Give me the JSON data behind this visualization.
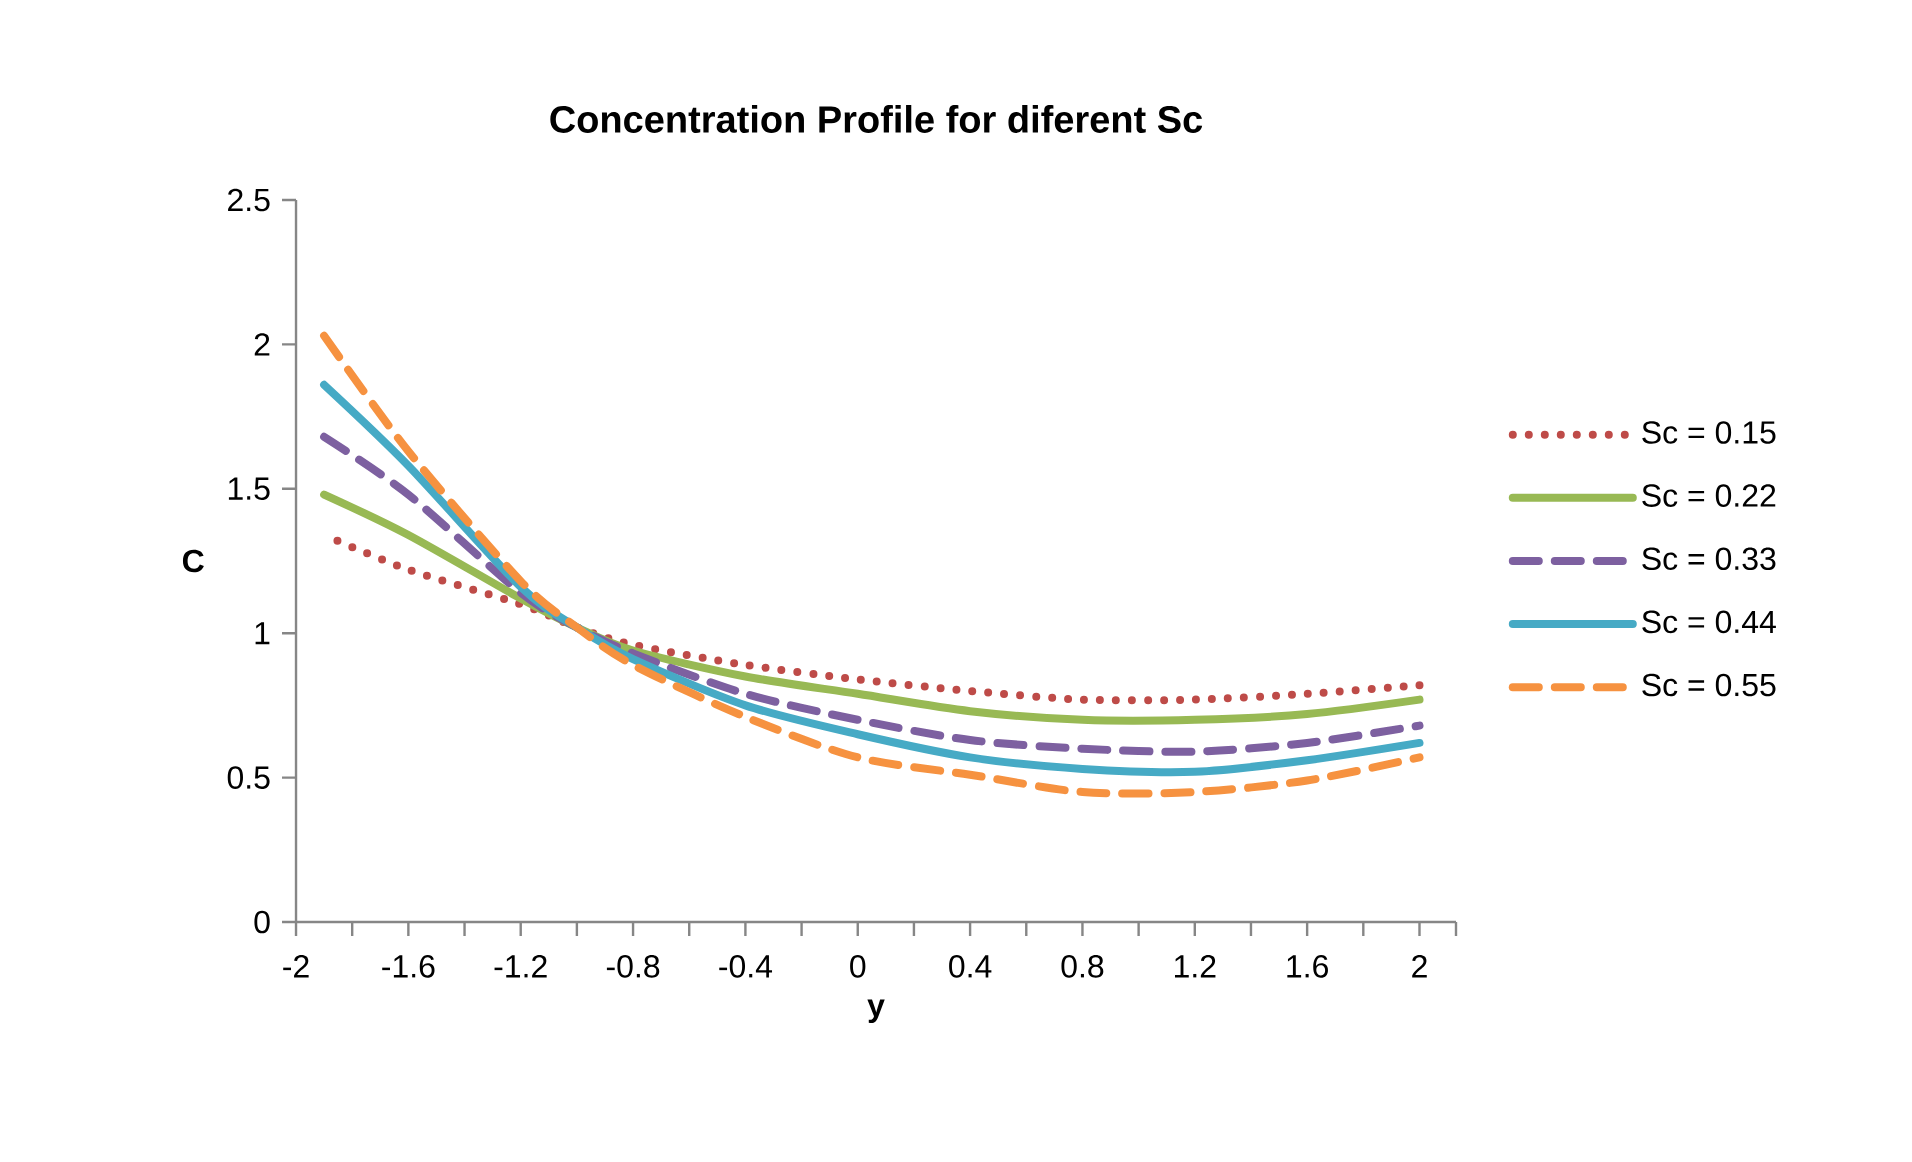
{
  "chart_data": {
    "type": "line",
    "title": "Concentration Profile for diferent Sc",
    "xlabel": "y",
    "ylabel": "C",
    "x": [
      -1.9,
      -1.6,
      -1.2,
      -1.0,
      -0.8,
      -0.4,
      0,
      0.4,
      0.8,
      1.2,
      1.6,
      2.0
    ],
    "series": [
      {
        "name": "Sc = 0.15",
        "color": "#be4b48",
        "line_style": "dotted",
        "values": [
          1.34,
          1.22,
          1.1,
          1.02,
          0.96,
          0.89,
          0.84,
          0.8,
          0.77,
          0.77,
          0.79,
          0.82
        ]
      },
      {
        "name": "Sc = 0.22",
        "color": "#98b954",
        "line_style": "solid",
        "values": [
          1.48,
          1.34,
          1.12,
          1.02,
          0.94,
          0.85,
          0.79,
          0.73,
          0.7,
          0.7,
          0.72,
          0.77
        ]
      },
      {
        "name": "Sc = 0.33",
        "color": "#7d60a0",
        "line_style": "dashed",
        "values": [
          1.68,
          1.48,
          1.14,
          1.02,
          0.93,
          0.79,
          0.7,
          0.63,
          0.6,
          0.59,
          0.62,
          0.68
        ]
      },
      {
        "name": "Sc = 0.44",
        "color": "#46aac5",
        "line_style": "solid",
        "values": [
          1.86,
          1.58,
          1.16,
          1.02,
          0.91,
          0.75,
          0.65,
          0.57,
          0.53,
          0.52,
          0.56,
          0.62
        ]
      },
      {
        "name": "Sc = 0.55",
        "color": "#f69240",
        "line_style": "dashed",
        "values": [
          2.03,
          1.63,
          1.18,
          1.02,
          0.89,
          0.71,
          0.57,
          0.51,
          0.45,
          0.45,
          0.49,
          0.57
        ]
      }
    ],
    "xlim": [
      -2,
      2.13
    ],
    "ylim": [
      0,
      2.5
    ],
    "xticks": [
      -2,
      {
        "value": -1.8,
        "label": null
      },
      -1.6,
      {
        "value": -1.4,
        "label": null
      },
      -1.2,
      {
        "value": -1.0,
        "label": null
      },
      -0.8,
      {
        "value": -0.6,
        "label": null
      },
      -0.4,
      {
        "value": -0.2,
        "label": null
      },
      0,
      {
        "value": 0.2,
        "label": null
      },
      0.4,
      {
        "value": 0.6,
        "label": null
      },
      0.8,
      {
        "value": 1.0,
        "label": null
      },
      1.2,
      {
        "value": 1.4,
        "label": null
      },
      1.6,
      {
        "value": 1.8,
        "label": null
      },
      2,
      {
        "value": 2.13,
        "label": null
      }
    ],
    "yticks": [
      0,
      0.5,
      1,
      1.5,
      2,
      2.5
    ],
    "grid": false,
    "legend": "right"
  }
}
